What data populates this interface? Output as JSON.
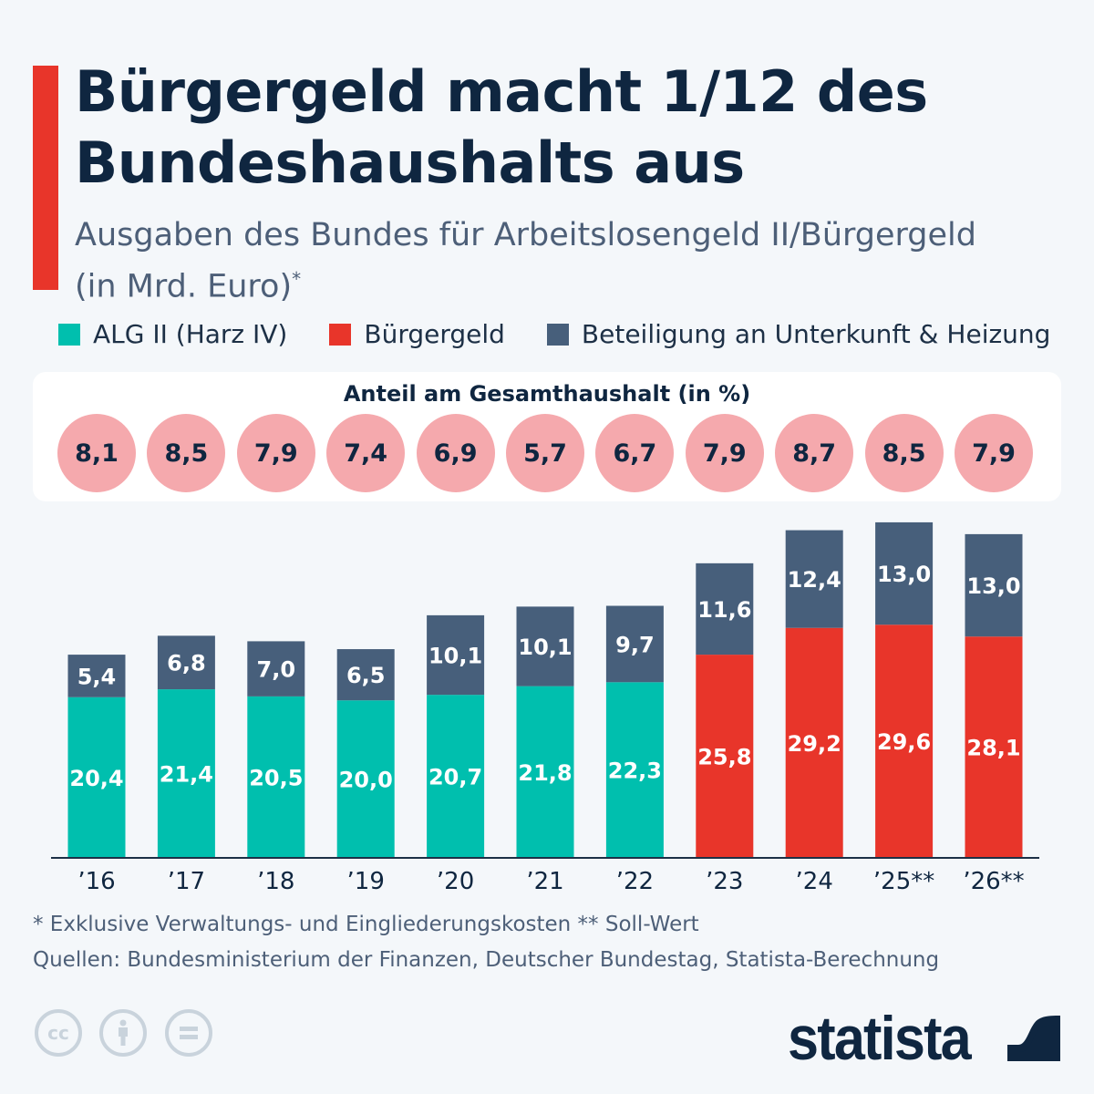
{
  "header": {
    "title_line1": "Bürgergeld macht 1/12 des",
    "title_line2": "Bundeshaushalts aus",
    "subtitle_line1": "Ausgaben des Bundes für Arbeitslosengeld II/Bürgergeld",
    "subtitle_line2": "(in Mrd. Euro)",
    "subtitle_mark": "*"
  },
  "share_panel": {
    "title": "Anteil am Gesamthaushalt (in %)",
    "values": [
      "8,1",
      "8,5",
      "7,9",
      "7,4",
      "6,9",
      "5,7",
      "6,7",
      "7,9",
      "8,7",
      "8,5",
      "7,9"
    ],
    "color": "#f5a9ad"
  },
  "chart_data": {
    "type": "bar",
    "stacked": true,
    "categories": [
      "’16",
      "’17",
      "’18",
      "’19",
      "’20",
      "’21",
      "’22",
      "’23",
      "’24",
      "’25**",
      "’26**"
    ],
    "legend": [
      "ALG II (Harz IV)",
      "Bürgergeld",
      "Beteiligung an Unterkunft & Heizung"
    ],
    "legend_placement": "top",
    "grid": false,
    "colors": {
      "alg2": "#00bfae",
      "buergergeld": "#e8352a",
      "unterkunft": "#475f7b"
    },
    "series": [
      {
        "name": "ALG II (Harz IV)",
        "values": [
          20.4,
          21.4,
          20.5,
          20.0,
          20.7,
          21.8,
          22.3,
          null,
          null,
          null,
          null
        ]
      },
      {
        "name": "Bürgergeld",
        "values": [
          null,
          null,
          null,
          null,
          null,
          null,
          null,
          25.8,
          29.2,
          29.6,
          28.1
        ]
      },
      {
        "name": "Beteiligung an Unterkunft & Heizung",
        "values": [
          5.4,
          6.8,
          7.0,
          6.5,
          10.1,
          10.1,
          9.7,
          11.6,
          12.4,
          13.0,
          13.0
        ]
      }
    ],
    "ylim": [
      0,
      43
    ]
  },
  "footer": {
    "note": "* Exklusive Verwaltungs- und Eingliederungskosten     ** Soll-Wert",
    "sources": "Quellen: Bundesministerium der Finanzen, Deutscher Bundestag, Statista-Berechnung",
    "brand": "statista",
    "license_icons": [
      "cc-icon",
      "by-icon",
      "nd-icon"
    ]
  }
}
